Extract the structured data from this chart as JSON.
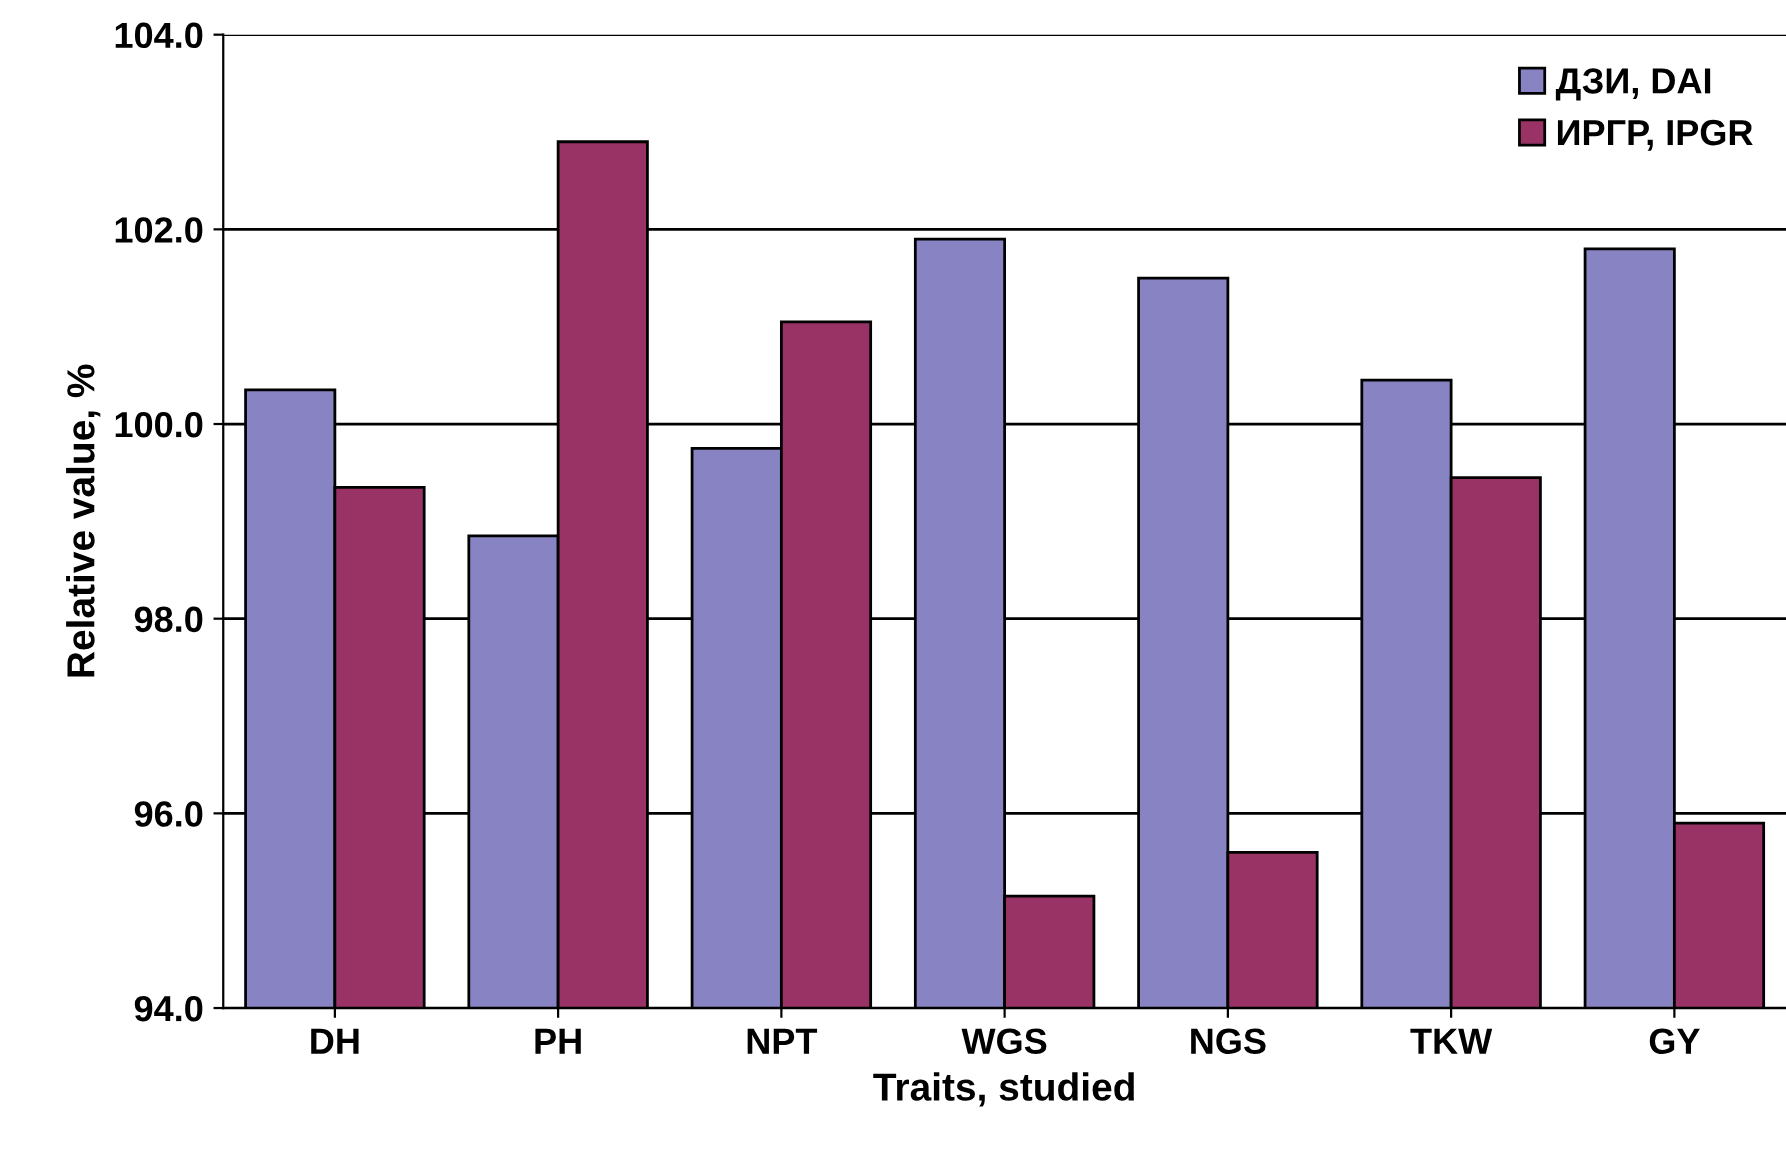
{
  "chart_data": {
    "type": "bar",
    "xlabel": "Traits, studied",
    "ylabel": "Relative value, %",
    "categories": [
      "DH",
      "PH",
      "NPT",
      "WGS",
      "NGS",
      "TKW",
      "GY"
    ],
    "series": [
      {
        "name": "ДЗИ, DAI",
        "color": "#8884c4",
        "values": [
          100.35,
          98.85,
          99.75,
          101.9,
          101.5,
          100.45,
          101.8
        ]
      },
      {
        "name": "ИРГР, IPGR",
        "color": "#993366",
        "values": [
          99.35,
          102.9,
          101.05,
          95.15,
          95.6,
          99.45,
          95.9
        ]
      }
    ],
    "ylim": [
      94,
      104
    ],
    "yticks": [
      {
        "value": 94,
        "label": "94.0"
      },
      {
        "value": 96,
        "label": "96.0"
      },
      {
        "value": 98,
        "label": "98.0"
      },
      {
        "value": 100,
        "label": "100.0"
      },
      {
        "value": 102,
        "label": "102.0"
      },
      {
        "value": 104,
        "label": "104.0"
      }
    ],
    "grid": "y",
    "legend": "top right"
  }
}
